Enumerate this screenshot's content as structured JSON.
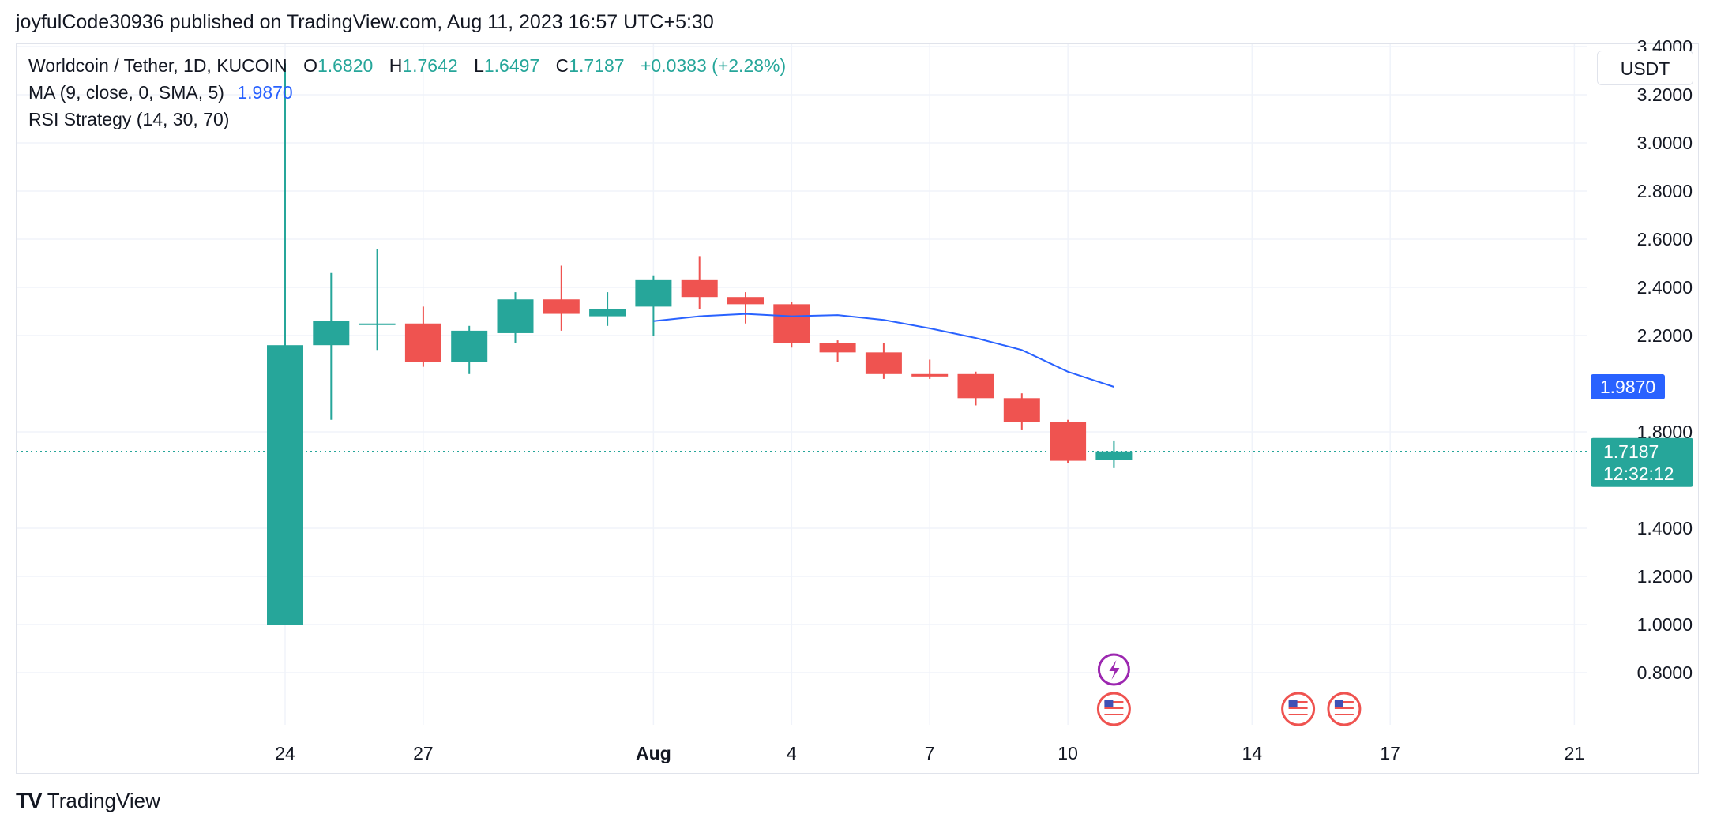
{
  "publish_line": "joyfulCode30936 published on TradingView.com, Aug 11, 2023 16:57 UTC+5:30",
  "legend": {
    "symbol": "Worldcoin / Tether, 1D, KUCOIN",
    "o_key": "O",
    "o": "1.6820",
    "h_key": "H",
    "h": "1.7642",
    "l_key": "L",
    "l": "1.6497",
    "c_key": "C",
    "c": "1.7187",
    "change": "+0.0383 (+2.28%)",
    "ma_label": "MA (9, close, 0, SMA, 5)",
    "ma_value": "1.9870",
    "rsi_label": "RSI Strategy (14, 30, 70)"
  },
  "currency_button": "USDT",
  "brand": {
    "logo": "TV",
    "name": "TradingView"
  },
  "colors": {
    "up": "#26a69a",
    "down": "#ef5350",
    "ma": "#2962ff",
    "grid": "#f0f3fa"
  },
  "chart_data": {
    "type": "candlestick",
    "y_ticks": [
      "0.8000",
      "1.0000",
      "1.2000",
      "1.4000",
      "1.8000",
      "2.2000",
      "2.4000",
      "2.6000",
      "2.8000",
      "3.0000",
      "3.2000",
      "3.4000"
    ],
    "x_ticks": [
      {
        "date": "2023-07-24",
        "label": "24"
      },
      {
        "date": "2023-07-27",
        "label": "27"
      },
      {
        "date": "2023-08-01",
        "label": "Aug"
      },
      {
        "date": "2023-08-04",
        "label": "4"
      },
      {
        "date": "2023-08-07",
        "label": "7"
      },
      {
        "date": "2023-08-10",
        "label": "10"
      },
      {
        "date": "2023-08-14",
        "label": "14"
      },
      {
        "date": "2023-08-17",
        "label": "17"
      },
      {
        "date": "2023-08-21",
        "label": "21"
      }
    ],
    "candles": [
      {
        "date": "2023-07-24",
        "o": 1.0,
        "h": 3.33,
        "l": 1.0,
        "c": 2.16
      },
      {
        "date": "2023-07-25",
        "o": 2.16,
        "h": 2.46,
        "l": 1.85,
        "c": 2.26
      },
      {
        "date": "2023-07-26",
        "o": 2.25,
        "h": 2.56,
        "l": 2.14,
        "c": 2.25
      },
      {
        "date": "2023-07-27",
        "o": 2.25,
        "h": 2.32,
        "l": 2.07,
        "c": 2.09
      },
      {
        "date": "2023-07-28",
        "o": 2.09,
        "h": 2.24,
        "l": 2.04,
        "c": 2.22
      },
      {
        "date": "2023-07-29",
        "o": 2.21,
        "h": 2.38,
        "l": 2.17,
        "c": 2.35
      },
      {
        "date": "2023-07-30",
        "o": 2.35,
        "h": 2.49,
        "l": 2.22,
        "c": 2.29
      },
      {
        "date": "2023-07-31",
        "o": 2.28,
        "h": 2.38,
        "l": 2.24,
        "c": 2.31
      },
      {
        "date": "2023-08-01",
        "o": 2.32,
        "h": 2.45,
        "l": 2.2,
        "c": 2.43
      },
      {
        "date": "2023-08-02",
        "o": 2.43,
        "h": 2.53,
        "l": 2.31,
        "c": 2.36
      },
      {
        "date": "2023-08-03",
        "o": 2.36,
        "h": 2.38,
        "l": 2.25,
        "c": 2.33
      },
      {
        "date": "2023-08-04",
        "o": 2.33,
        "h": 2.34,
        "l": 2.15,
        "c": 2.17
      },
      {
        "date": "2023-08-05",
        "o": 2.17,
        "h": 2.18,
        "l": 2.09,
        "c": 2.13
      },
      {
        "date": "2023-08-06",
        "o": 2.13,
        "h": 2.17,
        "l": 2.02,
        "c": 2.04
      },
      {
        "date": "2023-08-07",
        "o": 2.04,
        "h": 2.1,
        "l": 2.02,
        "c": 2.03
      },
      {
        "date": "2023-08-08",
        "o": 2.04,
        "h": 2.05,
        "l": 1.91,
        "c": 1.94
      },
      {
        "date": "2023-08-09",
        "o": 1.94,
        "h": 1.96,
        "l": 1.81,
        "c": 1.84
      },
      {
        "date": "2023-08-10",
        "o": 1.84,
        "h": 1.85,
        "l": 1.67,
        "c": 1.68
      },
      {
        "date": "2023-08-11",
        "o": 1.682,
        "h": 1.7642,
        "l": 1.6497,
        "c": 1.7187
      }
    ],
    "ma_series": {
      "name": "MA (9, close, 0, SMA, 5)",
      "points": [
        {
          "date": "2023-08-01",
          "v": 2.26
        },
        {
          "date": "2023-08-02",
          "v": 2.28
        },
        {
          "date": "2023-08-03",
          "v": 2.29
        },
        {
          "date": "2023-08-04",
          "v": 2.28
        },
        {
          "date": "2023-08-05",
          "v": 2.285
        },
        {
          "date": "2023-08-06",
          "v": 2.265
        },
        {
          "date": "2023-08-07",
          "v": 2.23
        },
        {
          "date": "2023-08-08",
          "v": 2.19
        },
        {
          "date": "2023-08-09",
          "v": 2.14
        },
        {
          "date": "2023-08-10",
          "v": 2.05
        },
        {
          "date": "2023-08-11",
          "v": 1.987
        }
      ]
    },
    "last_price_label": "1.7187",
    "countdown": "12:32:12",
    "ma_price_label": "1.9870",
    "events": [
      {
        "date": "2023-08-11",
        "kind": "earnings",
        "icon": "lightning-icon"
      },
      {
        "date": "2023-08-11",
        "kind": "economic",
        "icon": "us-flag-icon"
      },
      {
        "date": "2023-08-15",
        "kind": "economic",
        "icon": "us-flag-icon"
      },
      {
        "date": "2023-08-16",
        "kind": "economic",
        "icon": "us-flag-icon"
      }
    ]
  }
}
